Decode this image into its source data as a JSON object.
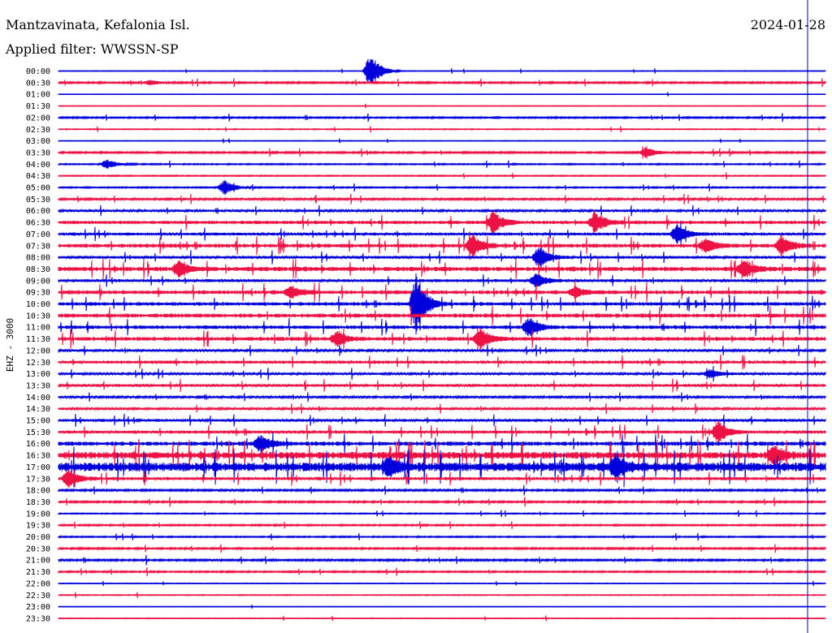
{
  "header": {
    "station": "Mantzavinata, Kefalonia Isl.",
    "filter": "Applied filter: WWSSN-SP",
    "date": "2024-01-28"
  },
  "channel_label": "EHZ - 3000",
  "colors": {
    "even_trace": "#0000dd",
    "odd_trace": "#ee1144",
    "text": "#000000",
    "marker": "#0000cc"
  },
  "chart_data": {
    "type": "line",
    "description_kind": "helicorder",
    "ylabel": "EHZ - 3000",
    "row_labels": [
      "00:00",
      "00:30",
      "01:00",
      "01:30",
      "02:00",
      "02:30",
      "03:00",
      "03:30",
      "04:00",
      "04:30",
      "05:00",
      "05:30",
      "06:00",
      "06:30",
      "07:00",
      "07:30",
      "08:00",
      "08:30",
      "09:00",
      "09:30",
      "10:00",
      "10:30",
      "11:00",
      "11:30",
      "12:00",
      "12:30",
      "13:00",
      "13:30",
      "14:00",
      "14:30",
      "15:00",
      "15:30",
      "16:00",
      "16:30",
      "17:00",
      "17:30",
      "18:00",
      "18:30",
      "19:00",
      "19:30",
      "20:00",
      "20:30",
      "21:00",
      "21:30",
      "22:00",
      "22:30",
      "23:00",
      "23:30"
    ],
    "row_minutes": 30,
    "row_noise": [
      0.3,
      0.8,
      0.15,
      0.2,
      0.7,
      0.4,
      0.25,
      0.8,
      0.6,
      0.5,
      0.6,
      1.0,
      1.2,
      1.8,
      1.5,
      2.0,
      1.4,
      2.2,
      1.5,
      2.0,
      1.8,
      2.1,
      1.8,
      2.0,
      1.2,
      1.6,
      1.2,
      1.4,
      1.0,
      1.2,
      1.4,
      1.6,
      2.2,
      3.5,
      4.5,
      1.6,
      0.9,
      0.8,
      0.5,
      0.7,
      0.6,
      0.8,
      0.9,
      0.7,
      0.3,
      0.4,
      0.2,
      0.3
    ],
    "events": [
      {
        "row": 0,
        "minute": 12.2,
        "amplitude": 24
      },
      {
        "row": 1,
        "minute": 3.6,
        "amplitude": 3
      },
      {
        "row": 7,
        "minute": 23.0,
        "amplitude": 8
      },
      {
        "row": 8,
        "minute": 1.9,
        "amplitude": 6
      },
      {
        "row": 10,
        "minute": 6.5,
        "amplitude": 10
      },
      {
        "row": 13,
        "minute": 17.0,
        "amplitude": 14
      },
      {
        "row": 13,
        "minute": 21.0,
        "amplitude": 14
      },
      {
        "row": 14,
        "minute": 24.2,
        "amplitude": 12
      },
      {
        "row": 15,
        "minute": 16.2,
        "amplitude": 14
      },
      {
        "row": 15,
        "minute": 25.3,
        "amplitude": 10
      },
      {
        "row": 15,
        "minute": 28.3,
        "amplitude": 14
      },
      {
        "row": 16,
        "minute": 18.8,
        "amplitude": 14
      },
      {
        "row": 17,
        "minute": 4.7,
        "amplitude": 10
      },
      {
        "row": 17,
        "minute": 26.8,
        "amplitude": 14
      },
      {
        "row": 18,
        "minute": 18.7,
        "amplitude": 9
      },
      {
        "row": 19,
        "minute": 9.1,
        "amplitude": 9
      },
      {
        "row": 19,
        "minute": 20.2,
        "amplitude": 7
      },
      {
        "row": 20,
        "minute": 14.0,
        "amplitude": 40
      },
      {
        "row": 22,
        "minute": 18.4,
        "amplitude": 12
      },
      {
        "row": 23,
        "minute": 10.9,
        "amplitude": 10
      },
      {
        "row": 23,
        "minute": 16.5,
        "amplitude": 14
      },
      {
        "row": 26,
        "minute": 25.5,
        "amplitude": 5
      },
      {
        "row": 31,
        "minute": 25.8,
        "amplitude": 14
      },
      {
        "row": 32,
        "minute": 7.9,
        "amplitude": 10
      },
      {
        "row": 33,
        "minute": 28.0,
        "amplitude": 12
      },
      {
        "row": 34,
        "minute": 12.9,
        "amplitude": 12
      },
      {
        "row": 34,
        "minute": 21.8,
        "amplitude": 14
      },
      {
        "row": 35,
        "minute": 0.4,
        "amplitude": 12
      }
    ],
    "marker_minute": 29.3
  }
}
